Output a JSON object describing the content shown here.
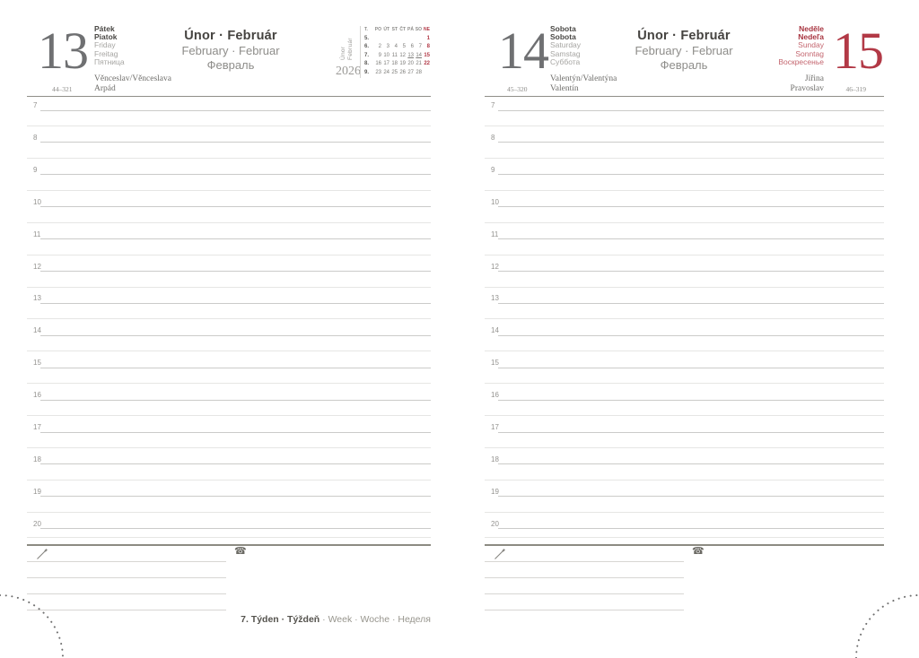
{
  "colors": {
    "accent_red": "#b23946",
    "grey_number": "#6f7072",
    "text_dark": "#4a4845",
    "text_light": "#a6a5a2",
    "hour_line": "#cbcbc9",
    "half_hour_line": "#e6e6e4",
    "rule": "#8f8e87"
  },
  "hours": [
    "7",
    "8",
    "9",
    "10",
    "11",
    "12",
    "13",
    "14",
    "15",
    "16",
    "17",
    "18",
    "19",
    "20"
  ],
  "notes_icons": {
    "phone_glyph": "☎"
  },
  "footer": {
    "bold": "7. Týden · Týždeň",
    "light": " · Week · Woche · Неделя"
  },
  "left_page": {
    "day_number": "13",
    "page_code": "44–321",
    "day_names_bold": [
      "Pátek",
      "Piatok"
    ],
    "day_names_light": [
      "Friday",
      "Freitag",
      "Пятница"
    ],
    "month_title": "Únor · Február",
    "month_sub1": "February · Februar",
    "month_sub2": "Февраль",
    "name_days": [
      "Věnceslav/Věnceslava",
      "Arpád"
    ],
    "side_month_labels": [
      "Únor",
      "Február"
    ],
    "year": "2026",
    "mini_calendar": {
      "week_col_header": "T.",
      "day_headers": [
        "PO",
        "ÚT",
        "ST",
        "ČT",
        "PÁ",
        "SO",
        "NE"
      ],
      "weeks": [
        {
          "num": "5.",
          "days": [
            "",
            "",
            "",
            "",
            "",
            "",
            "1"
          ]
        },
        {
          "num": "6.",
          "days": [
            "2",
            "3",
            "4",
            "5",
            "6",
            "7",
            "8"
          ]
        },
        {
          "num": "7.",
          "days": [
            "9",
            "10",
            "11",
            "12",
            "13",
            "14",
            "15"
          ]
        },
        {
          "num": "8.",
          "days": [
            "16",
            "17",
            "18",
            "19",
            "20",
            "21",
            "22"
          ]
        },
        {
          "num": "9.",
          "days": [
            "23",
            "24",
            "25",
            "26",
            "27",
            "28",
            ""
          ]
        }
      ],
      "red_days": [
        "1",
        "8",
        "15",
        "22"
      ],
      "underlined_days": [
        "13",
        "14"
      ]
    }
  },
  "right_page": {
    "month_title": "Únor · Február",
    "month_sub1": "February · Februar",
    "month_sub2": "Февраль",
    "saturday": {
      "day_number": "14",
      "page_code": "45–320",
      "day_names_bold": [
        "Sobota",
        "Sobota"
      ],
      "day_names_light": [
        "Saturday",
        "Samstag",
        "Суббота"
      ],
      "name_days": [
        "Valentýn/Valentýna",
        "Valentín"
      ]
    },
    "sunday": {
      "day_number": "15",
      "page_code": "46–319",
      "day_names_bold": [
        "Neděle",
        "Nedeľa"
      ],
      "day_names_light": [
        "Sunday",
        "Sonntag",
        "Воскресенье"
      ],
      "name_days": [
        "Jiřina",
        "Pravoslav"
      ]
    }
  }
}
